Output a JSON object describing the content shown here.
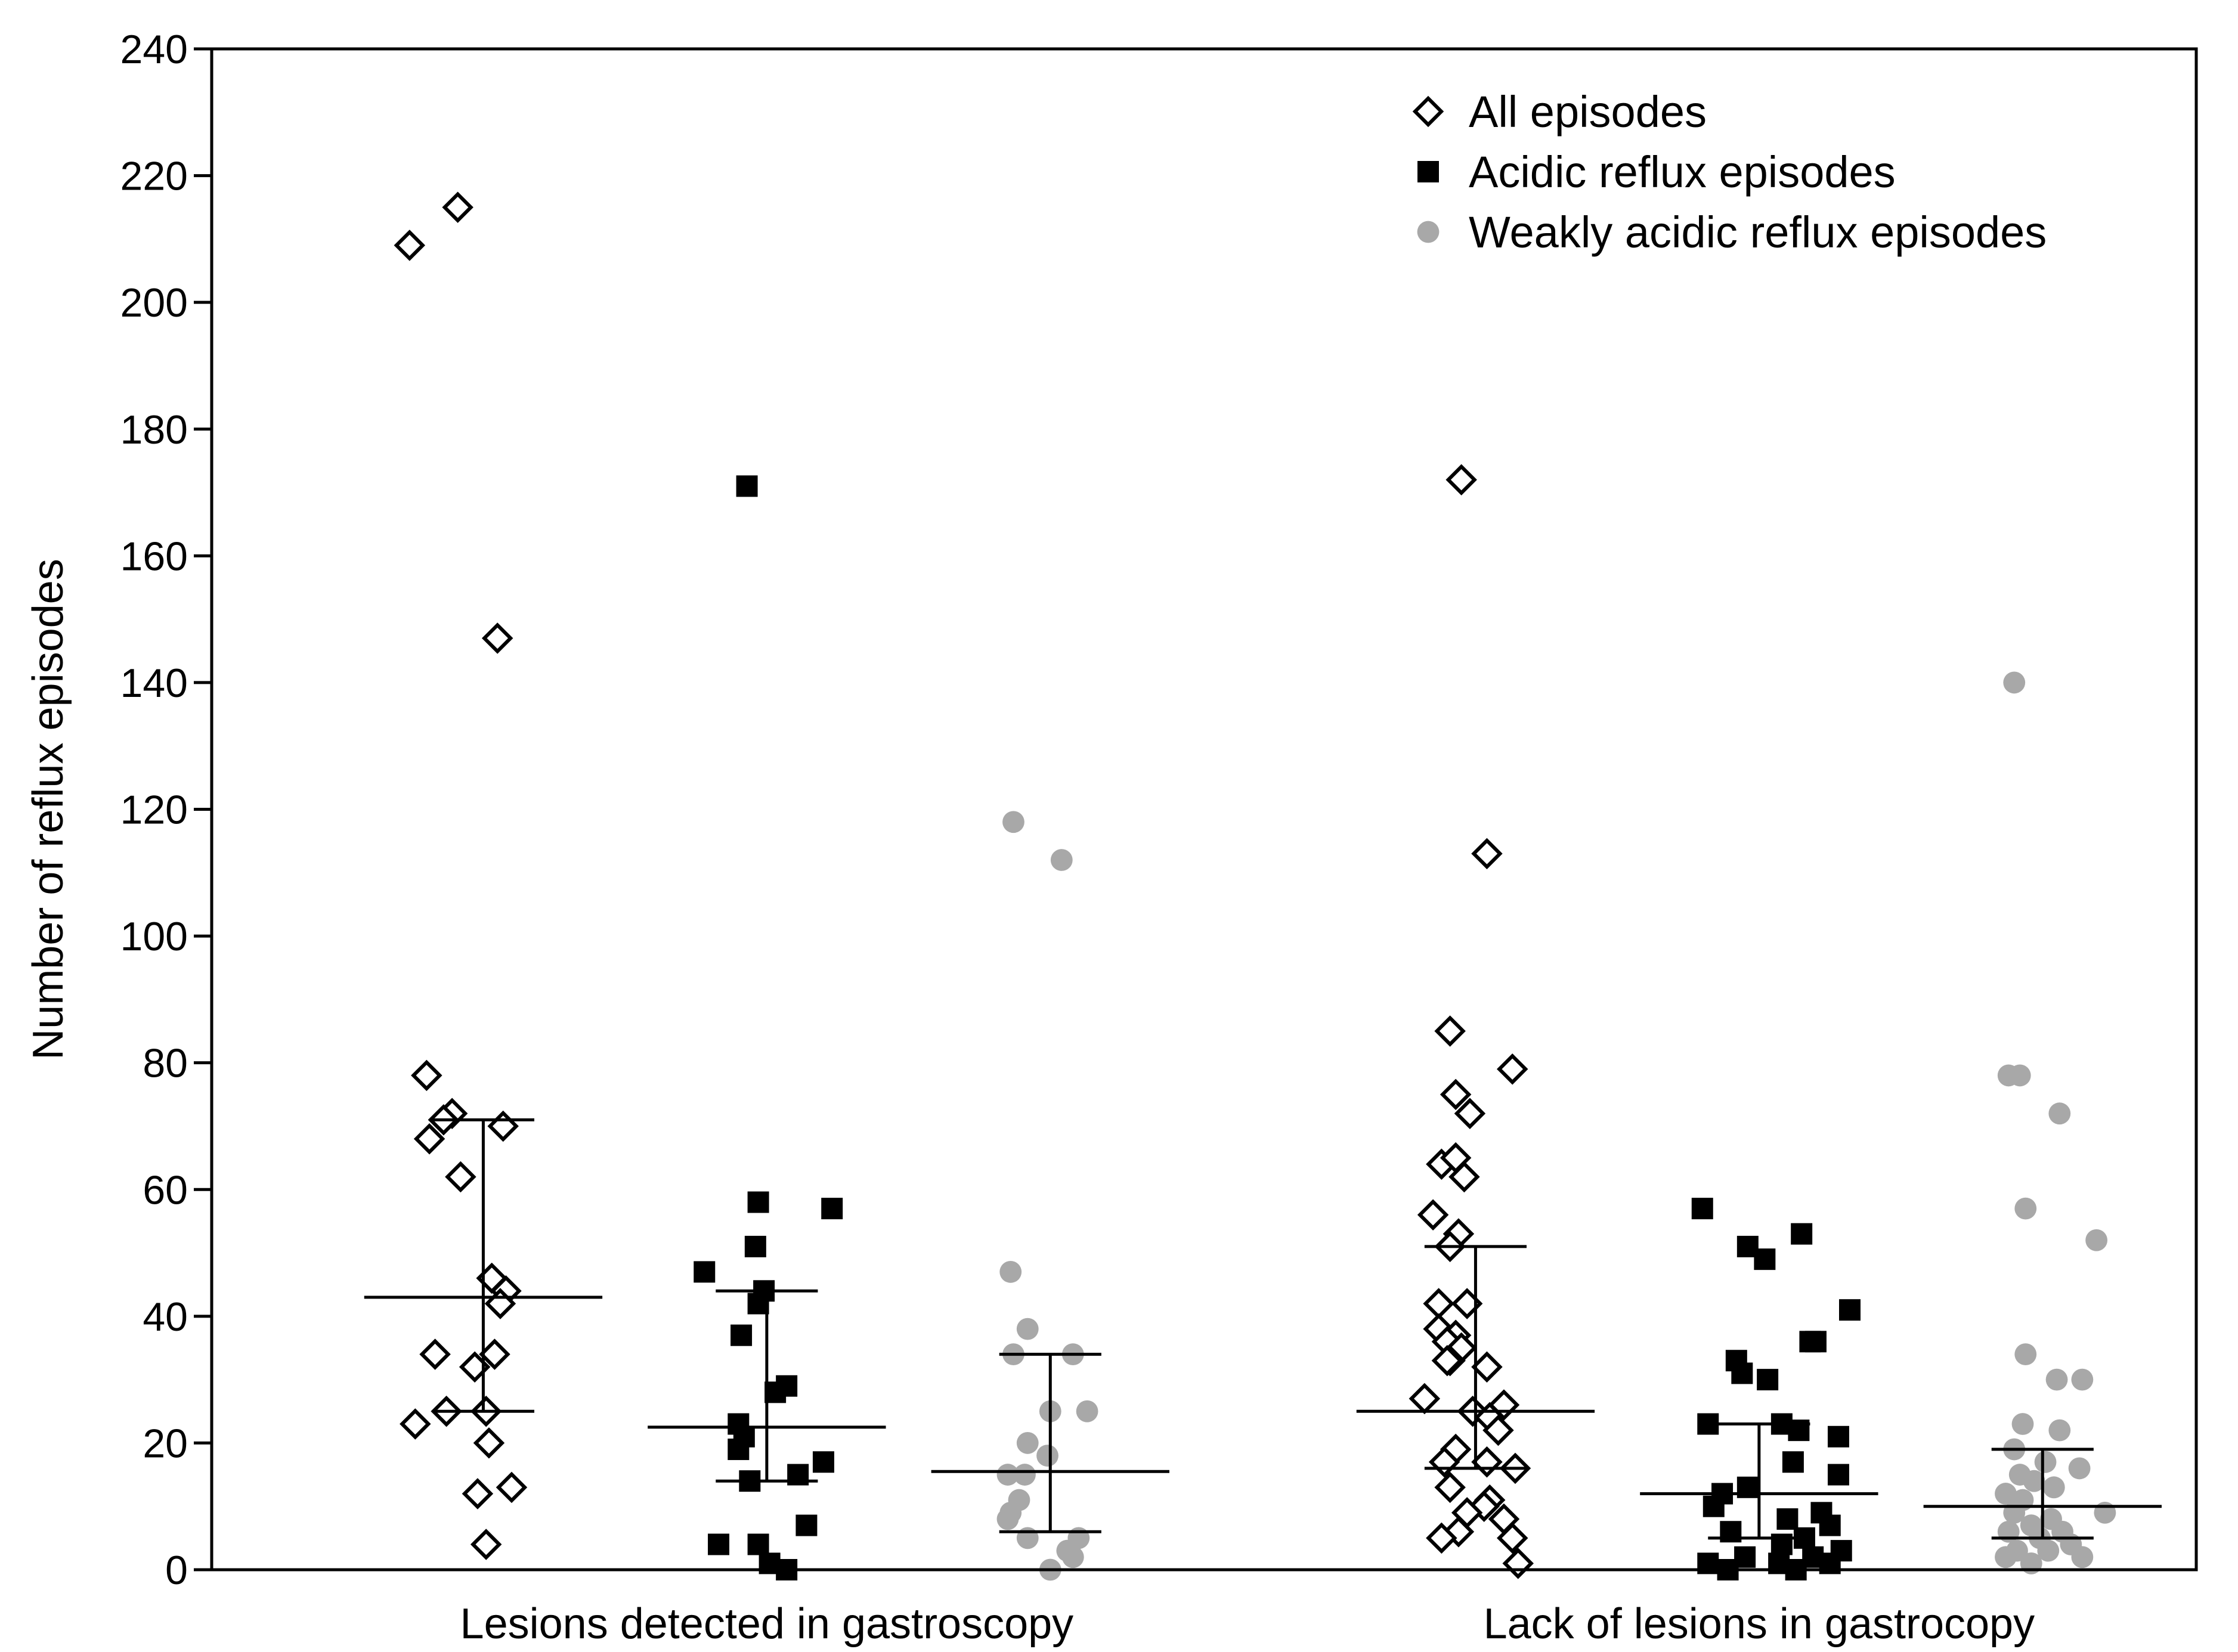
{
  "chart_data": {
    "type": "scatter",
    "title": "",
    "xlabel": "",
    "ylabel": "Number of reflux episodes",
    "ylim": [
      0,
      240
    ],
    "ytick_step": 20,
    "grid": false,
    "legend_position": "top-right",
    "groups": [
      {
        "name": "Lesions detected in gastroscopy"
      },
      {
        "name": "Lack of lesions in gastrocopy"
      }
    ],
    "series": [
      {
        "name": "All episodes",
        "marker": "open-diamond",
        "color": "#000000"
      },
      {
        "name": "Acidic reflux episodes",
        "marker": "filled-square",
        "color": "#000000"
      },
      {
        "name": "Weakly acidic reflux episodes",
        "marker": "filled-circle",
        "color": "#a8a8a8"
      }
    ],
    "columns": [
      {
        "group": "Lesions detected in gastroscopy",
        "series": "All episodes",
        "median": 43,
        "q1": 25,
        "q3": 71,
        "points": [
          {
            "dx": -0.26,
            "y": 209
          },
          {
            "dx": -0.09,
            "y": 215
          },
          {
            "dx": 0.05,
            "y": 147
          },
          {
            "dx": -0.2,
            "y": 78
          },
          {
            "dx": -0.11,
            "y": 72
          },
          {
            "dx": -0.14,
            "y": 71
          },
          {
            "dx": 0.07,
            "y": 70
          },
          {
            "dx": -0.19,
            "y": 68
          },
          {
            "dx": -0.08,
            "y": 62
          },
          {
            "dx": 0.03,
            "y": 46
          },
          {
            "dx": 0.08,
            "y": 44
          },
          {
            "dx": 0.06,
            "y": 42
          },
          {
            "dx": -0.17,
            "y": 34
          },
          {
            "dx": 0.04,
            "y": 34
          },
          {
            "dx": -0.03,
            "y": 32
          },
          {
            "dx": -0.13,
            "y": 25
          },
          {
            "dx": 0.01,
            "y": 25
          },
          {
            "dx": -0.24,
            "y": 23
          },
          {
            "dx": 0.02,
            "y": 20
          },
          {
            "dx": 0.1,
            "y": 13
          },
          {
            "dx": -0.02,
            "y": 12
          },
          {
            "dx": 0.01,
            "y": 4
          }
        ]
      },
      {
        "group": "Lesions detected in gastroscopy",
        "series": "Acidic reflux episodes",
        "median": 22.5,
        "q1": 14,
        "q3": 44,
        "points": [
          {
            "dx": -0.07,
            "y": 171
          },
          {
            "dx": -0.03,
            "y": 58
          },
          {
            "dx": 0.23,
            "y": 57
          },
          {
            "dx": -0.04,
            "y": 51
          },
          {
            "dx": -0.22,
            "y": 47
          },
          {
            "dx": -0.01,
            "y": 44
          },
          {
            "dx": -0.03,
            "y": 42
          },
          {
            "dx": -0.09,
            "y": 37
          },
          {
            "dx": 0.07,
            "y": 29
          },
          {
            "dx": 0.03,
            "y": 28
          },
          {
            "dx": -0.1,
            "y": 23
          },
          {
            "dx": -0.08,
            "y": 21
          },
          {
            "dx": -0.1,
            "y": 19
          },
          {
            "dx": 0.2,
            "y": 17
          },
          {
            "dx": 0.11,
            "y": 15
          },
          {
            "dx": -0.06,
            "y": 14
          },
          {
            "dx": 0.14,
            "y": 7
          },
          {
            "dx": -0.17,
            "y": 4
          },
          {
            "dx": -0.03,
            "y": 4
          },
          {
            "dx": 0.01,
            "y": 1
          },
          {
            "dx": 0.07,
            "y": 0
          }
        ]
      },
      {
        "group": "Lesions detected in gastroscopy",
        "series": "Weakly acidic reflux episodes",
        "median": 15.5,
        "q1": 6,
        "q3": 34,
        "points": [
          {
            "dx": -0.13,
            "y": 118
          },
          {
            "dx": 0.04,
            "y": 112
          },
          {
            "dx": -0.14,
            "y": 47
          },
          {
            "dx": -0.08,
            "y": 38
          },
          {
            "dx": -0.13,
            "y": 34
          },
          {
            "dx": 0.08,
            "y": 34
          },
          {
            "dx": 0.0,
            "y": 25
          },
          {
            "dx": 0.13,
            "y": 25
          },
          {
            "dx": -0.08,
            "y": 20
          },
          {
            "dx": -0.01,
            "y": 18
          },
          {
            "dx": -0.15,
            "y": 15
          },
          {
            "dx": -0.09,
            "y": 15
          },
          {
            "dx": -0.11,
            "y": 11
          },
          {
            "dx": -0.14,
            "y": 9
          },
          {
            "dx": -0.15,
            "y": 8
          },
          {
            "dx": -0.08,
            "y": 5
          },
          {
            "dx": 0.1,
            "y": 5
          },
          {
            "dx": 0.06,
            "y": 3
          },
          {
            "dx": 0.0,
            "y": 0
          },
          {
            "dx": 0.08,
            "y": 2
          }
        ]
      },
      {
        "group": "Lack of lesions in gastrocopy",
        "series": "All episodes",
        "median": 25,
        "q1": 16,
        "q3": 51,
        "points": [
          {
            "dx": -0.05,
            "y": 172
          },
          {
            "dx": 0.04,
            "y": 113
          },
          {
            "dx": -0.09,
            "y": 85
          },
          {
            "dx": 0.13,
            "y": 79
          },
          {
            "dx": -0.07,
            "y": 75
          },
          {
            "dx": -0.02,
            "y": 72
          },
          {
            "dx": -0.12,
            "y": 64
          },
          {
            "dx": -0.07,
            "y": 65
          },
          {
            "dx": -0.04,
            "y": 62
          },
          {
            "dx": -0.15,
            "y": 56
          },
          {
            "dx": -0.06,
            "y": 53
          },
          {
            "dx": -0.09,
            "y": 51
          },
          {
            "dx": -0.13,
            "y": 42
          },
          {
            "dx": -0.03,
            "y": 42
          },
          {
            "dx": -0.13,
            "y": 38
          },
          {
            "dx": -0.07,
            "y": 37
          },
          {
            "dx": -0.1,
            "y": 36
          },
          {
            "dx": -0.05,
            "y": 35
          },
          {
            "dx": -0.09,
            "y": 33
          },
          {
            "dx": -0.1,
            "y": 33
          },
          {
            "dx": 0.04,
            "y": 32
          },
          {
            "dx": -0.18,
            "y": 27
          },
          {
            "dx": 0.1,
            "y": 26
          },
          {
            "dx": -0.01,
            "y": 25
          },
          {
            "dx": 0.05,
            "y": 24
          },
          {
            "dx": 0.08,
            "y": 22
          },
          {
            "dx": -0.07,
            "y": 19
          },
          {
            "dx": -0.11,
            "y": 17
          },
          {
            "dx": 0.04,
            "y": 17
          },
          {
            "dx": 0.14,
            "y": 16
          },
          {
            "dx": -0.09,
            "y": 13
          },
          {
            "dx": 0.05,
            "y": 11
          },
          {
            "dx": 0.03,
            "y": 10
          },
          {
            "dx": -0.03,
            "y": 9
          },
          {
            "dx": 0.1,
            "y": 8
          },
          {
            "dx": -0.06,
            "y": 6
          },
          {
            "dx": -0.12,
            "y": 5
          },
          {
            "dx": 0.13,
            "y": 5
          },
          {
            "dx": 0.15,
            "y": 1
          }
        ]
      },
      {
        "group": "Lack of lesions in gastrocopy",
        "series": "Acidic reflux episodes",
        "median": 12,
        "q1": 5,
        "q3": 23,
        "points": [
          {
            "dx": -0.2,
            "y": 57
          },
          {
            "dx": 0.15,
            "y": 53
          },
          {
            "dx": -0.04,
            "y": 51
          },
          {
            "dx": 0.02,
            "y": 49
          },
          {
            "dx": 0.32,
            "y": 41
          },
          {
            "dx": 0.2,
            "y": 36
          },
          {
            "dx": 0.18,
            "y": 36
          },
          {
            "dx": -0.08,
            "y": 33
          },
          {
            "dx": -0.06,
            "y": 31
          },
          {
            "dx": 0.03,
            "y": 30
          },
          {
            "dx": -0.18,
            "y": 23
          },
          {
            "dx": 0.08,
            "y": 23
          },
          {
            "dx": 0.14,
            "y": 22
          },
          {
            "dx": 0.28,
            "y": 21
          },
          {
            "dx": 0.12,
            "y": 17
          },
          {
            "dx": 0.28,
            "y": 15
          },
          {
            "dx": -0.04,
            "y": 13
          },
          {
            "dx": -0.13,
            "y": 12
          },
          {
            "dx": -0.16,
            "y": 10
          },
          {
            "dx": 0.22,
            "y": 9
          },
          {
            "dx": 0.1,
            "y": 8
          },
          {
            "dx": 0.25,
            "y": 7
          },
          {
            "dx": -0.1,
            "y": 6
          },
          {
            "dx": 0.16,
            "y": 5
          },
          {
            "dx": 0.08,
            "y": 4
          },
          {
            "dx": 0.29,
            "y": 3
          },
          {
            "dx": -0.05,
            "y": 2
          },
          {
            "dx": 0.19,
            "y": 2
          },
          {
            "dx": -0.18,
            "y": 1
          },
          {
            "dx": 0.07,
            "y": 1
          },
          {
            "dx": 0.25,
            "y": 1
          },
          {
            "dx": -0.11,
            "y": 0
          },
          {
            "dx": 0.13,
            "y": 0
          }
        ]
      },
      {
        "group": "Lack of lesions in gastrocopy",
        "series": "Weakly acidic reflux episodes",
        "median": 10,
        "q1": 5,
        "q3": 19,
        "points": [
          {
            "dx": -0.1,
            "y": 140
          },
          {
            "dx": -0.12,
            "y": 78
          },
          {
            "dx": -0.08,
            "y": 78
          },
          {
            "dx": 0.06,
            "y": 72
          },
          {
            "dx": -0.06,
            "y": 57
          },
          {
            "dx": 0.19,
            "y": 52
          },
          {
            "dx": -0.06,
            "y": 34
          },
          {
            "dx": 0.05,
            "y": 30
          },
          {
            "dx": 0.14,
            "y": 30
          },
          {
            "dx": -0.07,
            "y": 23
          },
          {
            "dx": 0.06,
            "y": 22
          },
          {
            "dx": -0.1,
            "y": 19
          },
          {
            "dx": 0.01,
            "y": 17
          },
          {
            "dx": 0.13,
            "y": 16
          },
          {
            "dx": -0.08,
            "y": 15
          },
          {
            "dx": -0.03,
            "y": 14
          },
          {
            "dx": -0.13,
            "y": 12
          },
          {
            "dx": 0.04,
            "y": 13
          },
          {
            "dx": -0.07,
            "y": 11
          },
          {
            "dx": 0.22,
            "y": 9
          },
          {
            "dx": -0.1,
            "y": 9
          },
          {
            "dx": 0.03,
            "y": 8
          },
          {
            "dx": -0.04,
            "y": 7
          },
          {
            "dx": 0.07,
            "y": 6
          },
          {
            "dx": -0.12,
            "y": 6
          },
          {
            "dx": -0.01,
            "y": 5
          },
          {
            "dx": 0.1,
            "y": 4
          },
          {
            "dx": -0.09,
            "y": 3
          },
          {
            "dx": 0.02,
            "y": 3
          },
          {
            "dx": -0.13,
            "y": 2
          },
          {
            "dx": 0.14,
            "y": 2
          },
          {
            "dx": -0.04,
            "y": 1
          }
        ]
      }
    ]
  }
}
